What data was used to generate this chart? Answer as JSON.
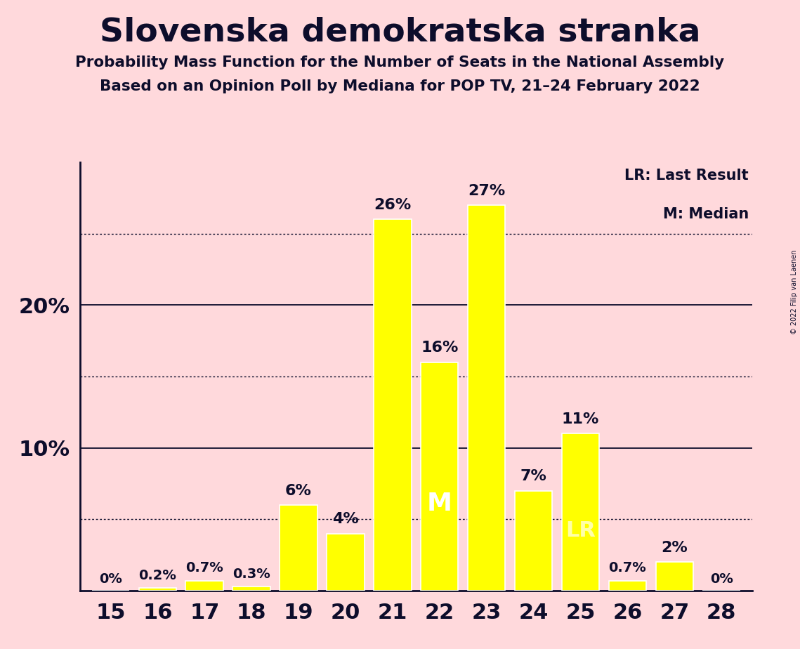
{
  "title": "Slovenska demokratska stranka",
  "subtitle1": "Probability Mass Function for the Number of Seats in the National Assembly",
  "subtitle2": "Based on an Opinion Poll by Mediana for POP TV, 21–24 February 2022",
  "copyright": "© 2022 Filip van Laenen",
  "seats": [
    15,
    16,
    17,
    18,
    19,
    20,
    21,
    22,
    23,
    24,
    25,
    26,
    27,
    28
  ],
  "probabilities": [
    0.0,
    0.2,
    0.7,
    0.3,
    6.0,
    4.0,
    26.0,
    16.0,
    27.0,
    7.0,
    11.0,
    0.7,
    2.0,
    0.0
  ],
  "bar_color": "#ffff00",
  "bar_edge_color": "#ffffff",
  "background_color": "#ffd9dc",
  "text_color": "#0d0d2b",
  "median_seat": 22,
  "last_result_seat": 25,
  "legend_text_lr": "LR: Last Result",
  "legend_text_m": "M: Median",
  "solid_lines": [
    10,
    20
  ],
  "dotted_lines": [
    5,
    15,
    25
  ],
  "ylim": [
    0,
    30
  ],
  "bar_width": 0.8
}
